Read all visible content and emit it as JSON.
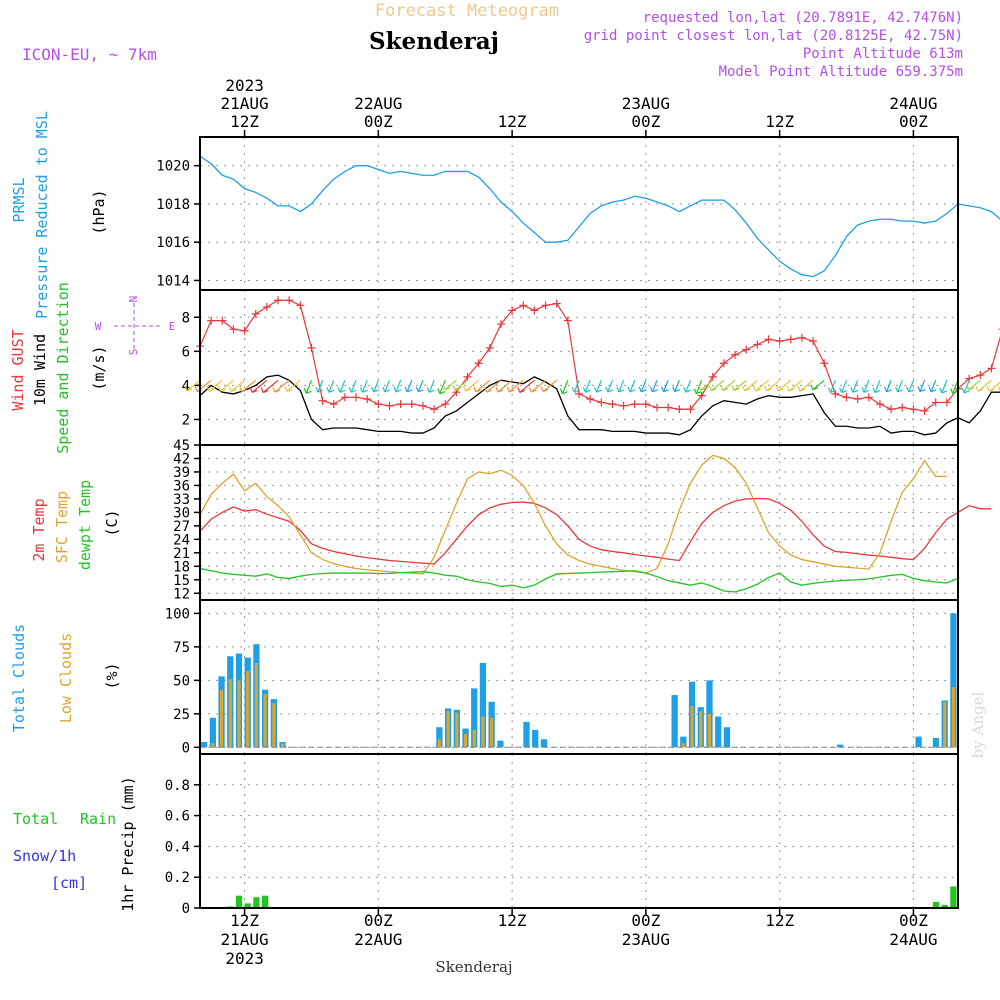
{
  "header": {
    "title_top": "Forecast Meteogram",
    "location": "Skenderaj",
    "model": "ICON-EU, ~ 7km",
    "requested": "requested lon,lat (20.7891E, 42.7476N)",
    "gridpoint": "grid point closest lon,lat (20.8125E, 42.75N)",
    "point_altitude": "Point Altitude 613m",
    "model_altitude": "Model Point Altitude 659.375m",
    "footer_location": "Skenderaj",
    "credit": "by Angel"
  },
  "colors": {
    "prmsl": "#1e9fe6",
    "gust": "#e8383c",
    "wind": "#000000",
    "dir": "#22c322",
    "t2m": "#e8383c",
    "sfc": "#dca52d",
    "dew": "#22c322",
    "total_clouds": "#1e9fe6",
    "low_clouds": "#dca52d",
    "rain": "#22c322",
    "snow": "#3333e6",
    "meta": "#b450e6",
    "title": "#f0c88c"
  },
  "time_axis": {
    "hours": 68,
    "top_ticks": [
      {
        "hour": 4,
        "l1": "2023",
        "l2": "21AUG",
        "l3": "12Z"
      },
      {
        "hour": 16,
        "l1": "",
        "l2": "22AUG",
        "l3": "00Z"
      },
      {
        "hour": 28,
        "l1": "",
        "l2": "",
        "l3": "12Z"
      },
      {
        "hour": 40,
        "l1": "",
        "l2": "23AUG",
        "l3": "00Z"
      },
      {
        "hour": 52,
        "l1": "",
        "l2": "",
        "l3": "12Z"
      },
      {
        "hour": 64,
        "l1": "",
        "l2": "24AUG",
        "l3": "00Z"
      }
    ],
    "bottom_ticks": [
      {
        "hour": 4,
        "l1": "12Z",
        "l2": "21AUG",
        "l3": "2023"
      },
      {
        "hour": 16,
        "l1": "00Z",
        "l2": "22AUG",
        "l3": ""
      },
      {
        "hour": 28,
        "l1": "12Z",
        "l2": "",
        "l3": ""
      },
      {
        "hour": 40,
        "l1": "00Z",
        "l2": "23AUG",
        "l3": ""
      },
      {
        "hour": 52,
        "l1": "12Z",
        "l2": "",
        "l3": ""
      },
      {
        "hour": 64,
        "l1": "00Z",
        "l2": "24AUG",
        "l3": ""
      }
    ]
  },
  "chart_data": [
    {
      "id": "pressure",
      "type": "line",
      "ylabel_lines": [
        "PRMSL",
        "Pressure Reduced to MSL"
      ],
      "unit": "(hPa)",
      "ylim": [
        1013.5,
        1021.5
      ],
      "yticks": [
        1014,
        1016,
        1018,
        1020
      ],
      "series": [
        {
          "name": "PRMSL",
          "x": [
            0,
            1,
            2,
            3,
            4,
            5,
            6,
            7,
            8,
            9,
            10,
            11,
            12,
            13,
            14,
            15,
            16,
            17,
            18,
            19,
            20,
            21,
            22,
            23,
            24,
            25,
            26,
            27,
            28,
            29,
            30,
            31,
            32,
            33,
            34,
            35,
            36,
            37,
            38,
            39,
            40,
            41,
            42,
            43,
            44,
            45,
            46,
            47,
            48,
            49,
            50,
            51,
            52,
            53,
            54,
            55,
            56,
            57,
            58,
            59,
            60,
            61,
            62,
            63,
            64,
            65,
            66,
            67,
            68,
            69,
            70,
            71,
            72,
            73,
            74,
            75
          ],
          "values": [
            1020.5,
            1020.1,
            1019.5,
            1019.3,
            1018.8,
            1018.6,
            1018.3,
            1017.9,
            1017.9,
            1017.6,
            1018.0,
            1018.7,
            1019.3,
            1019.7,
            1020.0,
            1020.0,
            1019.8,
            1019.6,
            1019.7,
            1019.6,
            1019.5,
            1019.5,
            1019.7,
            1019.7,
            1019.7,
            1019.4,
            1018.8,
            1018.1,
            1017.6,
            1017.0,
            1016.5,
            1016.0,
            1016.0,
            1016.1,
            1016.8,
            1017.5,
            1017.9,
            1018.1,
            1018.2,
            1018.4,
            1018.3,
            1018.1,
            1017.9,
            1017.6,
            1017.9,
            1018.2,
            1018.2,
            1018.2,
            1017.7,
            1017.0,
            1016.2,
            1015.6,
            1015.0,
            1014.6,
            1014.3,
            1014.2,
            1014.5,
            1015.3,
            1016.3,
            1016.9,
            1017.1,
            1017.2,
            1017.2,
            1017.1,
            1017.1,
            1017.0,
            1017.1,
            1017.5,
            1018.0,
            1017.9,
            1017.8,
            1017.6,
            1017.1,
            1016.4,
            1016.2,
            1016.2
          ]
        }
      ]
    },
    {
      "id": "wind",
      "type": "line",
      "ylabel_lines": [
        "Wind GUST",
        "10m Wind",
        "Speed and Direction"
      ],
      "unit": "(m/s)",
      "compass": {
        "n": "N",
        "s": "S",
        "w": "W",
        "e": "E"
      },
      "ylim": [
        0.5,
        9.6
      ],
      "yticks": [
        2,
        4,
        6,
        8
      ],
      "series": [
        {
          "name": "Wind GUST",
          "values": [
            6.3,
            7.8,
            7.8,
            7.3,
            7.2,
            8.2,
            8.6,
            9.0,
            9.0,
            8.7,
            6.2,
            3.1,
            2.9,
            3.3,
            3.3,
            3.2,
            2.9,
            2.8,
            2.9,
            2.9,
            2.8,
            2.6,
            2.9,
            3.6,
            4.5,
            5.3,
            6.2,
            7.6,
            8.4,
            8.7,
            8.4,
            8.7,
            8.8,
            7.8,
            3.5,
            3.2,
            3.0,
            2.9,
            2.8,
            2.9,
            2.9,
            2.7,
            2.7,
            2.6,
            2.6,
            3.4,
            4.5,
            5.3,
            5.8,
            6.1,
            6.4,
            6.7,
            6.6,
            6.7,
            6.8,
            6.6,
            5.3,
            3.5,
            3.3,
            3.2,
            3.3,
            2.9,
            2.6,
            2.7,
            2.6,
            2.5,
            3.0,
            3.0,
            3.8,
            4.4,
            4.6,
            5.0,
            7.3,
            7.3
          ]
        },
        {
          "name": "10m Wind",
          "values": [
            3.4,
            4.0,
            3.6,
            3.5,
            3.7,
            4.0,
            4.5,
            4.6,
            4.3,
            3.7,
            2.0,
            1.4,
            1.5,
            1.5,
            1.5,
            1.4,
            1.3,
            1.3,
            1.3,
            1.2,
            1.2,
            1.5,
            2.2,
            2.5,
            3.0,
            3.5,
            4.0,
            4.3,
            4.2,
            4.1,
            4.5,
            4.2,
            3.8,
            2.2,
            1.4,
            1.4,
            1.4,
            1.3,
            1.3,
            1.3,
            1.2,
            1.2,
            1.2,
            1.1,
            1.4,
            2.2,
            2.8,
            3.1,
            3.0,
            2.9,
            3.2,
            3.4,
            3.3,
            3.3,
            3.4,
            3.5,
            2.4,
            1.6,
            1.6,
            1.5,
            1.5,
            1.6,
            1.2,
            1.3,
            1.3,
            1.1,
            1.2,
            1.8,
            2.1,
            1.8,
            2.5,
            3.6,
            3.6,
            3.6
          ]
        }
      ]
    },
    {
      "id": "temperature",
      "type": "line",
      "ylabel_lines": [
        "2m Temp",
        "SFC Temp",
        "dewpt Temp"
      ],
      "unit": "(C)",
      "ylim": [
        10.5,
        45
      ],
      "yticks": [
        12,
        15,
        18,
        21,
        24,
        27,
        30,
        33,
        36,
        39,
        42,
        45
      ],
      "series": [
        {
          "name": "2m Temp",
          "values": [
            25.8,
            28.5,
            30.0,
            31.2,
            30.3,
            30.6,
            29.6,
            28.8,
            28.0,
            26.0,
            23.0,
            22.0,
            21.3,
            20.8,
            20.3,
            19.9,
            19.6,
            19.3,
            19.1,
            18.9,
            18.7,
            18.5,
            21.0,
            24.0,
            27.0,
            29.5,
            31.0,
            31.8,
            32.2,
            32.3,
            32.0,
            31.0,
            29.5,
            27.0,
            24.0,
            22.5,
            21.7,
            21.3,
            21.0,
            20.6,
            20.3,
            20.0,
            19.6,
            19.3,
            23.5,
            27.5,
            30.0,
            31.5,
            32.5,
            33.0,
            33.1,
            33.0,
            32.0,
            30.5,
            28.0,
            25.0,
            22.5,
            21.3,
            21.1,
            20.8,
            20.5,
            20.3,
            20.0,
            19.7,
            19.5,
            22.0,
            25.5,
            28.5,
            30.0,
            31.5,
            30.8,
            30.8
          ]
        },
        {
          "name": "SFC Temp",
          "values": [
            29.5,
            34.0,
            36.5,
            38.5,
            34.8,
            36.5,
            33.5,
            31.5,
            29.0,
            25.0,
            21.0,
            19.5,
            18.6,
            18.0,
            17.5,
            17.2,
            17.0,
            16.8,
            16.6,
            16.5,
            16.3,
            20.0,
            26.0,
            32.0,
            37.5,
            39.0,
            38.6,
            39.4,
            38.2,
            36.0,
            32.0,
            27.0,
            23.0,
            20.5,
            19.3,
            18.5,
            18.0,
            17.5,
            17.1,
            16.8,
            16.5,
            17.5,
            23.0,
            30.5,
            36.5,
            40.5,
            42.7,
            42.0,
            40.0,
            36.5,
            31.0,
            25.5,
            22.5,
            20.5,
            19.5,
            19.0,
            18.5,
            18.0,
            17.8,
            17.6,
            17.4,
            21.0,
            28.0,
            34.5,
            37.5,
            41.5,
            38.0,
            38.0
          ]
        },
        {
          "name": "dewpt Temp",
          "values": [
            17.5,
            17.0,
            16.5,
            16.2,
            16.0,
            15.8,
            16.3,
            15.5,
            15.3,
            15.8,
            16.2,
            16.4,
            16.5,
            16.5,
            16.5,
            16.5,
            16.4,
            16.4,
            16.6,
            16.7,
            16.8,
            16.5,
            16.0,
            15.8,
            15.0,
            14.5,
            14.2,
            13.5,
            13.8,
            13.2,
            13.8,
            15.2,
            16.3,
            16.4,
            16.5,
            16.6,
            16.7,
            16.8,
            16.9,
            17.0,
            16.5,
            15.7,
            14.8,
            14.3,
            13.8,
            14.3,
            13.5,
            12.5,
            12.3,
            13.0,
            14.0,
            15.5,
            16.5,
            14.5,
            13.8,
            14.2,
            14.5,
            14.7,
            14.9,
            15.0,
            15.2,
            15.6,
            16.0,
            16.2,
            15.3,
            14.8,
            14.5,
            14.3,
            15.3
          ]
        }
      ]
    },
    {
      "id": "clouds",
      "type": "bar",
      "ylabel_lines": [
        "Total Clouds",
        "Low Clouds"
      ],
      "unit": "(%)",
      "ylim": [
        -5,
        110
      ],
      "yticks": [
        0,
        25,
        50,
        75,
        100
      ],
      "series": [
        {
          "name": "Total Clouds",
          "values": [
            4,
            22,
            53,
            68,
            70,
            67,
            77,
            43,
            36,
            4,
            0,
            0,
            0,
            0,
            0,
            0,
            0,
            0,
            0,
            0,
            0,
            0,
            0,
            0,
            0,
            0,
            0,
            15,
            29,
            28,
            14,
            44,
            63,
            34,
            5,
            0,
            0,
            19,
            13,
            6,
            0,
            0,
            0,
            0,
            0,
            0,
            0,
            0,
            0,
            0,
            0,
            0,
            0,
            0,
            39,
            8,
            49,
            30,
            50,
            23,
            15,
            0,
            0,
            0,
            0,
            0,
            0,
            0,
            0,
            0,
            0,
            0,
            0,
            2,
            0,
            0,
            0,
            0,
            0,
            0,
            0,
            0,
            8,
            0,
            7,
            35,
            100
          ]
        },
        {
          "name": "Low Clouds",
          "values": [
            0,
            3,
            43,
            51,
            50,
            57,
            63,
            40,
            33,
            3,
            0,
            0,
            0,
            0,
            0,
            0,
            0,
            0,
            0,
            0,
            0,
            0,
            0,
            0,
            0,
            0,
            0,
            6,
            27,
            26,
            10,
            13,
            23,
            22,
            0,
            0,
            0,
            0,
            0,
            0,
            0,
            0,
            0,
            0,
            0,
            0,
            0,
            0,
            0,
            0,
            0,
            0,
            0,
            0,
            0,
            3,
            31,
            27,
            25,
            0,
            0,
            0,
            0,
            0,
            0,
            0,
            0,
            0,
            0,
            0,
            0,
            0,
            0,
            0,
            0,
            0,
            0,
            0,
            0,
            0,
            0,
            0,
            0,
            0,
            0,
            34,
            45
          ]
        }
      ]
    },
    {
      "id": "precip",
      "type": "bar",
      "ylabel_lines": [
        "1hr Precip (mm)"
      ],
      "legend": {
        "total": "Total",
        "rain": "Rain",
        "snow": "Snow/1h",
        "cm": "[cm]"
      },
      "ylim": [
        0,
        1.0
      ],
      "yticks": [
        0,
        0.2,
        0.4,
        0.6,
        0.8
      ],
      "ytick_labels": [
        "0",
        "0.2",
        "0.4",
        "0.6",
        "0.8"
      ],
      "series": [
        {
          "name": "Total Rain",
          "values": [
            0,
            0,
            0,
            0.01,
            0.08,
            0.03,
            0.07,
            0.08,
            0,
            0,
            0,
            0,
            0,
            0,
            0,
            0,
            0,
            0,
            0,
            0,
            0,
            0,
            0,
            0,
            0,
            0,
            0,
            0,
            0,
            0,
            0,
            0,
            0,
            0,
            0,
            0,
            0,
            0,
            0,
            0,
            0,
            0,
            0,
            0,
            0,
            0,
            0,
            0,
            0,
            0,
            0,
            0,
            0,
            0,
            0,
            0,
            0,
            0,
            0,
            0,
            0,
            0,
            0,
            0,
            0,
            0,
            0,
            0,
            0,
            0,
            0,
            0,
            0,
            0,
            0,
            0,
            0,
            0,
            0,
            0,
            0,
            0,
            0,
            0,
            0.04,
            0.02,
            0.14
          ]
        }
      ]
    }
  ]
}
